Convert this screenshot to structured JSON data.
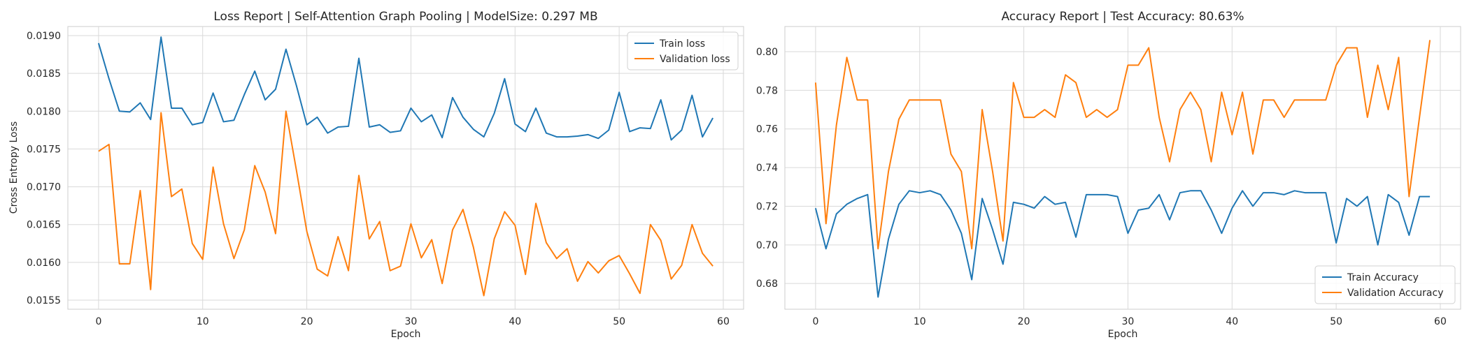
{
  "chart_data": [
    {
      "type": "line",
      "title": "Loss Report | Self-Attention Graph Pooling | ModelSize: 0.297 MB",
      "xlabel": "Epoch",
      "ylabel": "Cross Entropy Loss",
      "xlim": [
        -2.95,
        61.95
      ],
      "ylim": [
        0.01538,
        0.01912
      ],
      "xticks": [
        0,
        10,
        20,
        30,
        40,
        50,
        60
      ],
      "xtick_labels": [
        "0",
        "10",
        "20",
        "30",
        "40",
        "50",
        "60"
      ],
      "yticks": [
        0.0155,
        0.016,
        0.0165,
        0.017,
        0.0175,
        0.018,
        0.0185,
        0.019
      ],
      "ytick_labels": [
        "0.0155",
        "0.0160",
        "0.0165",
        "0.0170",
        "0.0175",
        "0.0180",
        "0.0185",
        "0.0190"
      ],
      "grid": true,
      "legend_position": "top-right",
      "x": [
        0,
        1,
        2,
        3,
        4,
        5,
        6,
        7,
        8,
        9,
        10,
        11,
        12,
        13,
        14,
        15,
        16,
        17,
        18,
        19,
        20,
        21,
        22,
        23,
        24,
        25,
        26,
        27,
        28,
        29,
        30,
        31,
        32,
        33,
        34,
        35,
        36,
        37,
        38,
        39,
        40,
        41,
        42,
        43,
        44,
        45,
        46,
        47,
        48,
        49,
        50,
        51,
        52,
        53,
        54,
        55,
        56,
        57,
        58,
        59
      ],
      "series": [
        {
          "name": "Train loss",
          "color": "#1f77b4",
          "values": [
            0.0189,
            0.01843,
            0.018,
            0.01799,
            0.01811,
            0.01789,
            0.01898,
            0.01804,
            0.01804,
            0.01782,
            0.01785,
            0.01824,
            0.01786,
            0.01788,
            0.01822,
            0.01853,
            0.01815,
            0.01829,
            0.01882,
            0.01834,
            0.01782,
            0.01792,
            0.01771,
            0.01779,
            0.0178,
            0.0187,
            0.01779,
            0.01782,
            0.01772,
            0.01774,
            0.01804,
            0.01786,
            0.01795,
            0.01765,
            0.01818,
            0.01792,
            0.01776,
            0.01766,
            0.01797,
            0.01843,
            0.01783,
            0.01773,
            0.01804,
            0.01771,
            0.01766,
            0.01766,
            0.01767,
            0.01769,
            0.01764,
            0.01775,
            0.01825,
            0.01773,
            0.01778,
            0.01777,
            0.01815,
            0.01762,
            0.01775,
            0.01821,
            0.01766,
            0.01791
          ]
        },
        {
          "name": "Validation loss",
          "color": "#ff7f0e",
          "values": [
            0.01747,
            0.01756,
            0.01598,
            0.01598,
            0.01695,
            0.01564,
            0.01798,
            0.01687,
            0.01697,
            0.01625,
            0.01604,
            0.01726,
            0.01651,
            0.01605,
            0.01643,
            0.01728,
            0.01693,
            0.01638,
            0.018,
            0.01722,
            0.01641,
            0.01591,
            0.01582,
            0.01634,
            0.01589,
            0.01715,
            0.01631,
            0.01654,
            0.01589,
            0.01595,
            0.01651,
            0.01606,
            0.0163,
            0.01572,
            0.01643,
            0.0167,
            0.0162,
            0.01556,
            0.01631,
            0.01667,
            0.01649,
            0.01584,
            0.01678,
            0.01626,
            0.01605,
            0.01618,
            0.01575,
            0.01601,
            0.01586,
            0.01602,
            0.01609,
            0.01585,
            0.01559,
            0.0165,
            0.01629,
            0.01578,
            0.01596,
            0.0165,
            0.01612,
            0.01595
          ]
        }
      ]
    },
    {
      "type": "line",
      "title": "Accuracy Report | Test Accuracy: 80.63%",
      "xlabel": "Epoch",
      "ylabel": "",
      "xlim": [
        -2.95,
        61.95
      ],
      "ylim": [
        0.6667,
        0.813
      ],
      "xticks": [
        0,
        10,
        20,
        30,
        40,
        50,
        60
      ],
      "xtick_labels": [
        "0",
        "10",
        "20",
        "30",
        "40",
        "50",
        "60"
      ],
      "yticks": [
        0.68,
        0.7,
        0.72,
        0.74,
        0.76,
        0.78,
        0.8
      ],
      "ytick_labels": [
        "0.68",
        "0.70",
        "0.72",
        "0.74",
        "0.76",
        "0.78",
        "0.80"
      ],
      "grid": true,
      "legend_position": "bottom-right",
      "x": [
        0,
        1,
        2,
        3,
        4,
        5,
        6,
        7,
        8,
        9,
        10,
        11,
        12,
        13,
        14,
        15,
        16,
        17,
        18,
        19,
        20,
        21,
        22,
        23,
        24,
        25,
        26,
        27,
        28,
        29,
        30,
        31,
        32,
        33,
        34,
        35,
        36,
        37,
        38,
        39,
        40,
        41,
        42,
        43,
        44,
        45,
        46,
        47,
        48,
        49,
        50,
        51,
        52,
        53,
        54,
        55,
        56,
        57,
        58,
        59
      ],
      "series": [
        {
          "name": "Train Accuracy",
          "color": "#1f77b4",
          "values": [
            0.719,
            0.698,
            0.716,
            0.721,
            0.724,
            0.726,
            0.673,
            0.703,
            0.721,
            0.728,
            0.727,
            0.728,
            0.726,
            0.718,
            0.706,
            0.682,
            0.724,
            0.708,
            0.69,
            0.722,
            0.721,
            0.719,
            0.725,
            0.721,
            0.722,
            0.704,
            0.726,
            0.726,
            0.726,
            0.725,
            0.706,
            0.718,
            0.719,
            0.726,
            0.713,
            0.727,
            0.728,
            0.728,
            0.718,
            0.706,
            0.719,
            0.728,
            0.72,
            0.727,
            0.727,
            0.726,
            0.728,
            0.727,
            0.727,
            0.727,
            0.701,
            0.724,
            0.72,
            0.725,
            0.7,
            0.726,
            0.722,
            0.705,
            0.725,
            0.725
          ]
        },
        {
          "name": "Validation Accuracy",
          "color": "#ff7f0e",
          "values": [
            0.784,
            0.711,
            0.762,
            0.797,
            0.775,
            0.775,
            0.698,
            0.738,
            0.765,
            0.775,
            0.775,
            0.775,
            0.775,
            0.747,
            0.738,
            0.698,
            0.77,
            0.738,
            0.702,
            0.784,
            0.766,
            0.766,
            0.77,
            0.766,
            0.788,
            0.784,
            0.766,
            0.77,
            0.766,
            0.77,
            0.793,
            0.793,
            0.802,
            0.766,
            0.743,
            0.77,
            0.779,
            0.77,
            0.743,
            0.779,
            0.757,
            0.779,
            0.747,
            0.775,
            0.775,
            0.766,
            0.775,
            0.775,
            0.775,
            0.775,
            0.793,
            0.802,
            0.802,
            0.766,
            0.793,
            0.77,
            0.797,
            0.725,
            0.766,
            0.806
          ]
        }
      ]
    }
  ]
}
